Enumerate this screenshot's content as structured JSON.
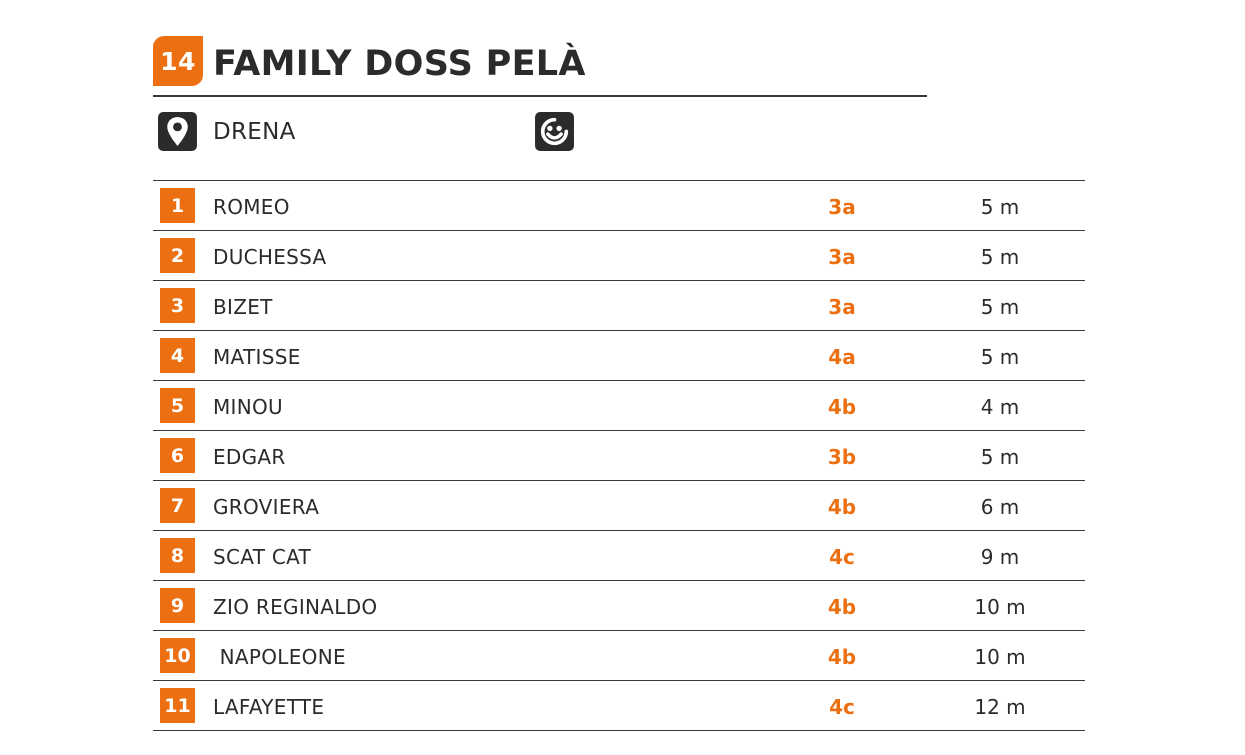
{
  "sector": {
    "number": "14",
    "title": "FAMILY DOSS PELÀ",
    "location": "DRENA",
    "location_icon": "map-pin-icon",
    "family_icon": "smiley-face-icon"
  },
  "colors": {
    "accent": "#ec7011",
    "text": "#2b2b2b",
    "rule": "#3a3a3a"
  },
  "routes": [
    {
      "number": "1",
      "name": "ROMEO",
      "grade": "3a",
      "length": "5 m"
    },
    {
      "number": "2",
      "name": "DUCHESSA",
      "grade": "3a",
      "length": "5 m"
    },
    {
      "number": "3",
      "name": "BIZET",
      "grade": "3a",
      "length": "5 m"
    },
    {
      "number": "4",
      "name": "MATISSE",
      "grade": "4a",
      "length": "5 m"
    },
    {
      "number": "5",
      "name": "MINOU",
      "grade": "4b",
      "length": "4 m"
    },
    {
      "number": "6",
      "name": "EDGAR",
      "grade": "3b",
      "length": "5 m"
    },
    {
      "number": "7",
      "name": "GROVIERA",
      "grade": "4b",
      "length": "6 m"
    },
    {
      "number": "8",
      "name": "SCAT CAT",
      "grade": "4c",
      "length": "9 m"
    },
    {
      "number": "9",
      "name": "ZIO REGINALDO",
      "grade": "4b",
      "length": "10 m"
    },
    {
      "number": "10",
      "name": " NAPOLEONE",
      "grade": "4b",
      "length": "10 m"
    },
    {
      "number": "11",
      "name": "LAFAYETTE",
      "grade": "4c",
      "length": "12 m"
    }
  ]
}
